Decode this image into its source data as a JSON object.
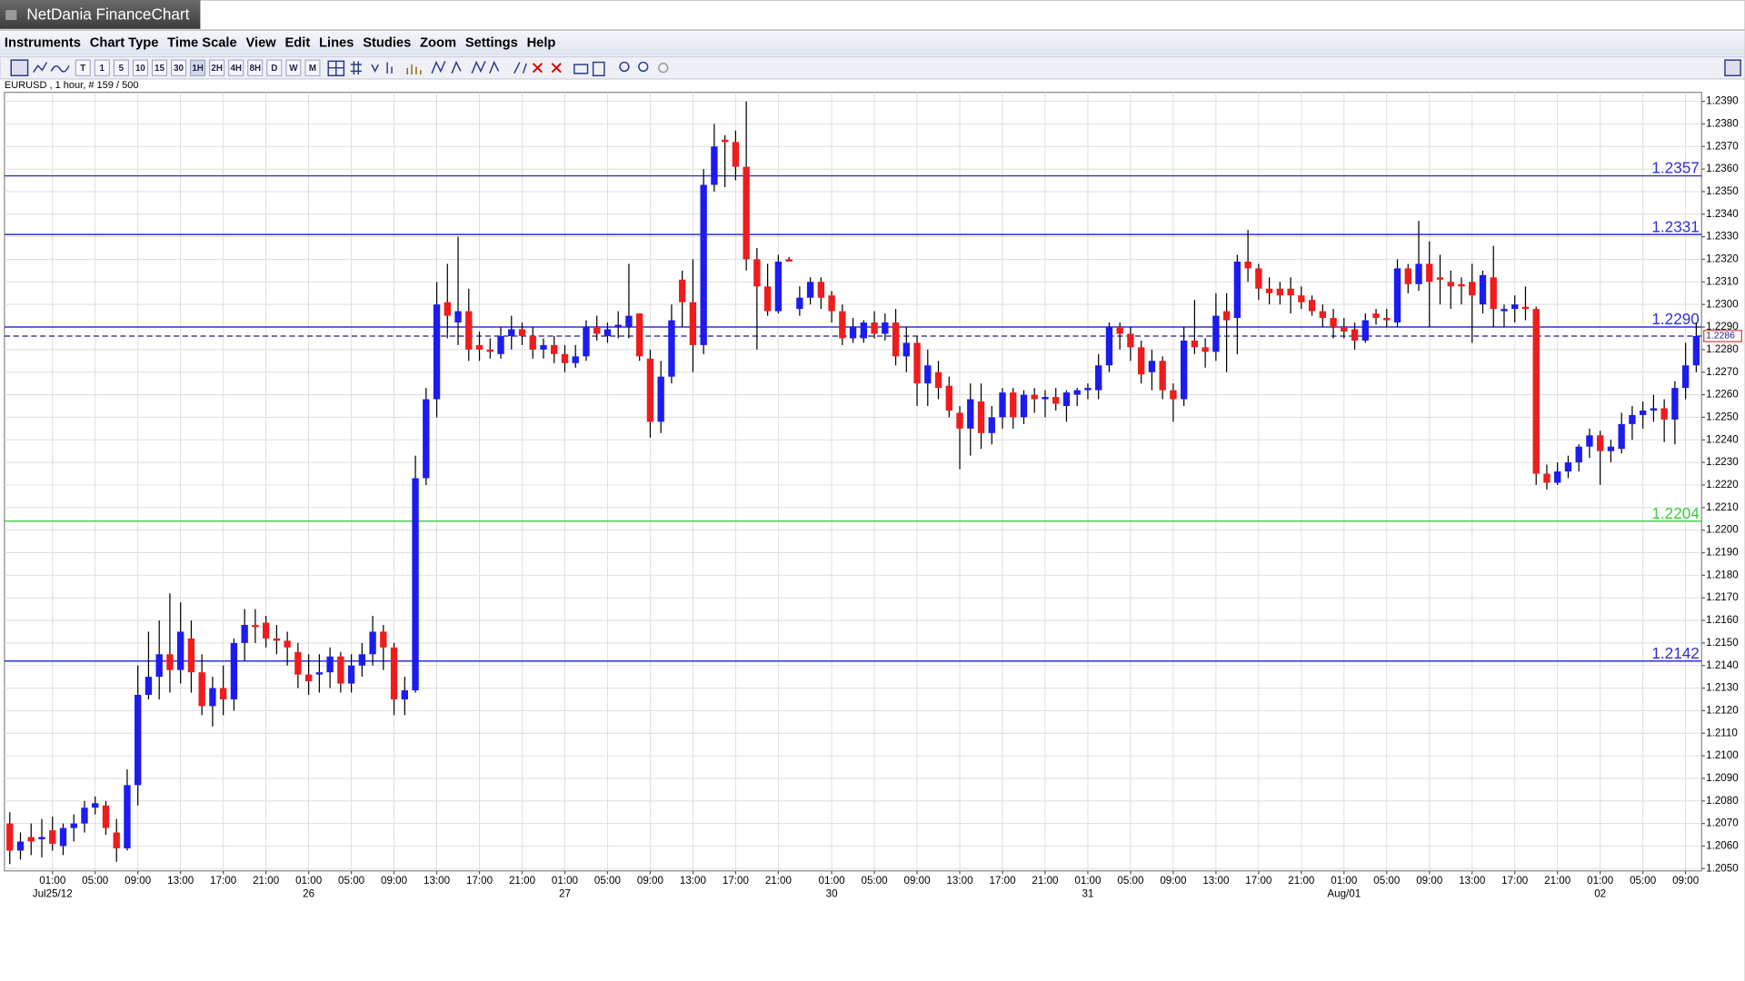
{
  "window": {
    "title": "NetDania FinanceChart"
  },
  "menu": [
    "Instruments",
    "Chart Type",
    "Time Scale",
    "View",
    "Edit",
    "Lines",
    "Studies",
    "Zoom",
    "Settings",
    "Help"
  ],
  "toolbar": [
    "T",
    "1",
    "5",
    "10",
    "15",
    "30",
    "1H",
    "2H",
    "4H",
    "8H",
    "D",
    "W",
    "M"
  ],
  "chart_data": {
    "type": "candlestick",
    "info": "EURUSD , 1 hour, # 159 / 500",
    "up_color": "#1c1cf0",
    "down_color": "#f01c1c",
    "grid": true,
    "ylim": [
      1.2049,
      1.2394
    ],
    "yticks": [
      {
        "value": 1.205,
        "label": "1.2050"
      },
      {
        "value": 1.206,
        "label": "1.2060"
      },
      {
        "value": 1.207,
        "label": "1.2070"
      },
      {
        "value": 1.208,
        "label": "1.2080"
      },
      {
        "value": 1.209,
        "label": "1.2090"
      },
      {
        "value": 1.21,
        "label": "1.2100"
      },
      {
        "value": 1.211,
        "label": "1.2110"
      },
      {
        "value": 1.212,
        "label": "1.2120"
      },
      {
        "value": 1.213,
        "label": "1.2130"
      },
      {
        "value": 1.214,
        "label": "1.2140"
      },
      {
        "value": 1.215,
        "label": "1.2150"
      },
      {
        "value": 1.216,
        "label": "1.2160"
      },
      {
        "value": 1.217,
        "label": "1.2170"
      },
      {
        "value": 1.218,
        "label": "1.2180"
      },
      {
        "value": 1.219,
        "label": "1.2190"
      },
      {
        "value": 1.22,
        "label": "1.2200"
      },
      {
        "value": 1.221,
        "label": "1.2210"
      },
      {
        "value": 1.222,
        "label": "1.2220"
      },
      {
        "value": 1.223,
        "label": "1.2230"
      },
      {
        "value": 1.224,
        "label": "1.2240"
      },
      {
        "value": 1.225,
        "label": "1.2250"
      },
      {
        "value": 1.226,
        "label": "1.2260"
      },
      {
        "value": 1.227,
        "label": "1.2270"
      },
      {
        "value": 1.228,
        "label": "1.2280"
      },
      {
        "value": 1.229,
        "label": "1.2290"
      },
      {
        "value": 1.23,
        "label": "1.2300"
      },
      {
        "value": 1.231,
        "label": "1.2310"
      },
      {
        "value": 1.232,
        "label": "1.2320"
      },
      {
        "value": 1.233,
        "label": "1.2330"
      },
      {
        "value": 1.234,
        "label": "1.2340"
      },
      {
        "value": 1.235,
        "label": "1.2350"
      },
      {
        "value": 1.236,
        "label": "1.2360"
      },
      {
        "value": 1.237,
        "label": "1.2370"
      },
      {
        "value": 1.238,
        "label": "1.2380"
      },
      {
        "value": 1.239,
        "label": "1.2390"
      }
    ],
    "levels": [
      {
        "value": 1.2357,
        "color": "#2f2fd8"
      },
      {
        "value": 1.2331,
        "color": "#2f2fd8"
      },
      {
        "value": {
          "value": 1.229,
          "label": "1.2290"
        },
        "color": "#2f2fd8"
      },
      {
        "value": 1.2204,
        "color": "#3ccc3c"
      },
      {
        "value": 1.2142,
        "color": "#2f2fd8"
      }
    ],
    "last_price": 1.2286,
    "categories": [
      null,
      null,
      null,
      null,
      "01:00",
      null,
      null,
      null,
      "05:00",
      null,
      null,
      null,
      "09:00",
      null,
      null,
      null,
      "13:00",
      null,
      null,
      null,
      "17:00",
      null,
      null,
      null,
      "21:00",
      null,
      null,
      null,
      "01:00",
      null,
      null,
      null,
      "05:00",
      null,
      null,
      null,
      "09:00",
      null,
      null,
      null,
      "13:00",
      null,
      null,
      null,
      "17:00",
      null,
      null,
      null,
      "21:00",
      null,
      null,
      null,
      "01:00",
      null,
      null,
      null,
      "05:00",
      null,
      null,
      null,
      "09:00",
      null,
      null,
      null,
      "13:00",
      null,
      null,
      null,
      "17:00",
      null,
      null,
      null,
      "21:00",
      null,
      null,
      null,
      null,
      "01:00",
      null,
      null,
      null,
      "05:00",
      null,
      null,
      null,
      "09:00",
      null,
      null,
      null,
      "13:00",
      null,
      null,
      null,
      "17:00",
      null,
      null,
      null,
      "21:00",
      null,
      null,
      null,
      "01:00",
      null,
      null,
      null,
      "05:00",
      null,
      null,
      null,
      "09:00",
      null,
      null,
      null,
      "13:00",
      null,
      null,
      null,
      "17:00",
      null,
      null,
      null,
      "21:00",
      null,
      null,
      null,
      "01:00",
      null,
      null,
      null,
      "05:00",
      null,
      null,
      null,
      "09:00",
      null,
      null,
      null,
      "13:00",
      null,
      null,
      null,
      "17:00",
      null,
      null,
      null,
      "21:00",
      null,
      null,
      null,
      "01:00",
      null,
      null,
      null,
      "05:00",
      null,
      null,
      null,
      "09:00",
      null
    ],
    "dates": [
      null,
      null,
      null,
      null,
      "Jul25/12",
      null,
      null,
      null,
      null,
      null,
      null,
      null,
      null,
      null,
      null,
      null,
      null,
      null,
      null,
      null,
      null,
      null,
      null,
      null,
      null,
      null,
      null,
      null,
      "26",
      null,
      null,
      null,
      null,
      null,
      null,
      null,
      null,
      null,
      null,
      null,
      null,
      null,
      null,
      null,
      null,
      null,
      null,
      null,
      null,
      null,
      null,
      null,
      "27",
      null,
      null,
      null,
      null,
      null,
      null,
      null,
      null,
      null,
      null,
      null,
      null,
      null,
      null,
      null,
      null,
      null,
      null,
      null,
      null,
      null,
      null,
      null,
      null,
      "30",
      null,
      null,
      null,
      null,
      null,
      null,
      null,
      null,
      null,
      null,
      null,
      null,
      null,
      null,
      null,
      null,
      null,
      null,
      null,
      null,
      null,
      null,
      null,
      "31",
      null,
      null,
      null,
      null,
      null,
      null,
      null,
      null,
      null,
      null,
      null,
      null,
      null,
      null,
      null,
      null,
      null,
      null,
      null,
      null,
      null,
      null,
      null,
      "Aug/01",
      null,
      null,
      null,
      null,
      null,
      null,
      null,
      null,
      null,
      null,
      null,
      null,
      null,
      null,
      null,
      null,
      null,
      null,
      null,
      null,
      null,
      null,
      null,
      "02",
      null,
      null,
      null,
      null,
      null,
      null,
      null,
      null,
      null
    ],
    "candles": [
      [
        1.207,
        1.2075,
        1.2052,
        1.2058
      ],
      [
        1.2058,
        1.2066,
        1.2054,
        1.2062
      ],
      [
        1.2064,
        1.207,
        1.2056,
        1.2062
      ],
      [
        1.2063,
        1.2072,
        1.2055,
        1.2064
      ],
      [
        1.2067,
        1.2073,
        1.2058,
        1.2061
      ],
      [
        1.206,
        1.207,
        1.2056,
        1.2068
      ],
      [
        1.2068,
        1.2074,
        1.2062,
        1.207
      ],
      [
        1.207,
        1.208,
        1.2066,
        1.2077
      ],
      [
        1.2077,
        1.2082,
        1.2074,
        1.2079
      ],
      [
        1.2078,
        1.208,
        1.2065,
        1.2068
      ],
      [
        1.2066,
        1.2072,
        1.2053,
        1.2059
      ],
      [
        1.2059,
        1.2094,
        1.2058,
        1.2087
      ],
      [
        1.2087,
        1.214,
        1.2078,
        1.2127
      ],
      [
        1.2127,
        1.2155,
        1.2125,
        1.2135
      ],
      [
        1.2135,
        1.216,
        1.2125,
        1.2145
      ],
      [
        1.2145,
        1.2172,
        1.2128,
        1.2138
      ],
      [
        1.2138,
        1.2168,
        1.2132,
        1.2155
      ],
      [
        1.2152,
        1.216,
        1.2128,
        1.2137
      ],
      [
        1.2137,
        1.2145,
        1.2118,
        1.2122
      ],
      [
        1.2122,
        1.2135,
        1.2113,
        1.213
      ],
      [
        1.213,
        1.214,
        1.2118,
        1.2125
      ],
      [
        1.2125,
        1.2152,
        1.212,
        1.215
      ],
      [
        1.215,
        1.2165,
        1.2142,
        1.2158
      ],
      [
        1.2158,
        1.2165,
        1.215,
        1.2157
      ],
      [
        1.2159,
        1.2162,
        1.2148,
        1.2152
      ],
      [
        1.2152,
        1.2158,
        1.2145,
        1.2151
      ],
      [
        1.2151,
        1.2155,
        1.214,
        1.2148
      ],
      [
        1.2146,
        1.215,
        1.213,
        1.2136
      ],
      [
        1.2136,
        1.2145,
        1.2127,
        1.2133
      ],
      [
        1.2136,
        1.2145,
        1.2128,
        1.2137
      ],
      [
        1.2137,
        1.2148,
        1.213,
        1.2144
      ],
      [
        1.2144,
        1.2146,
        1.2128,
        1.2132
      ],
      [
        1.2132,
        1.2145,
        1.2128,
        1.214
      ],
      [
        1.214,
        1.215,
        1.2135,
        1.2145
      ],
      [
        1.2145,
        1.2162,
        1.214,
        1.2155
      ],
      [
        1.2155,
        1.2158,
        1.2138,
        1.2148
      ],
      [
        1.2148,
        1.215,
        1.2118,
        1.2125
      ],
      [
        1.2125,
        1.2135,
        1.2118,
        1.2129
      ],
      [
        1.2129,
        1.2233,
        1.2128,
        1.2223
      ],
      [
        1.2223,
        1.2263,
        1.222,
        1.2258
      ],
      [
        1.2258,
        1.231,
        1.225,
        1.23
      ],
      [
        1.2301,
        1.2318,
        1.2285,
        1.2295
      ],
      [
        1.2292,
        1.233,
        1.2282,
        1.2297
      ],
      [
        1.2297,
        1.2307,
        1.2275,
        1.228
      ],
      [
        1.2282,
        1.2288,
        1.2275,
        1.228
      ],
      [
        1.228,
        1.2285,
        1.2276,
        1.2279
      ],
      [
        1.2278,
        1.229,
        1.2276,
        1.2286
      ],
      [
        1.2286,
        1.2295,
        1.228,
        1.2289
      ],
      [
        1.2289,
        1.2292,
        1.2282,
        1.2286
      ],
      [
        1.2286,
        1.229,
        1.2276,
        1.228
      ],
      [
        1.228,
        1.2285,
        1.2276,
        1.2282
      ],
      [
        1.2282,
        1.2286,
        1.2274,
        1.2278
      ],
      [
        1.2278,
        1.2282,
        1.227,
        1.2274
      ],
      [
        1.2274,
        1.2282,
        1.2272,
        1.2277
      ],
      [
        1.2277,
        1.2293,
        1.2275,
        1.229
      ],
      [
        1.229,
        1.2295,
        1.2284,
        1.2287
      ],
      [
        1.2286,
        1.2292,
        1.2283,
        1.2289
      ],
      [
        1.229,
        1.2297,
        1.2285,
        1.2291
      ],
      [
        1.229,
        1.2318,
        1.2285,
        1.2295
      ],
      [
        1.2296,
        1.2296,
        1.2275,
        1.2277
      ],
      [
        1.2276,
        1.228,
        1.2241,
        1.2248
      ],
      [
        1.2248,
        1.2275,
        1.2243,
        1.2268
      ],
      [
        1.2268,
        1.23,
        1.2265,
        1.2293
      ],
      [
        1.2311,
        1.2315,
        1.229,
        1.2301
      ],
      [
        1.2301,
        1.232,
        1.227,
        1.2282
      ],
      [
        1.2282,
        1.236,
        1.2278,
        1.2353
      ],
      [
        1.2353,
        1.238,
        1.235,
        1.237
      ],
      [
        1.2373,
        1.2375,
        1.2352,
        1.2372
      ],
      [
        1.2372,
        1.2377,
        1.2355,
        1.2361
      ],
      [
        1.2361,
        1.239,
        1.2315,
        1.232
      ],
      [
        1.232,
        1.2325,
        1.228,
        1.2308
      ],
      [
        1.2308,
        1.2318,
        1.2295,
        1.2297
      ],
      [
        1.2297,
        1.2322,
        1.2296,
        1.2319
      ],
      [
        1.232,
        1.2321,
        1.2319,
        1.2319
      ],
      [
        1.2298,
        1.2308,
        1.2295,
        1.2303
      ],
      [
        1.2303,
        1.2312,
        1.23,
        1.231
      ],
      [
        1.231,
        1.2312,
        1.2298,
        1.2303
      ],
      [
        1.2304,
        1.2306,
        1.2292,
        1.2297
      ],
      [
        1.2297,
        1.23,
        1.2282,
        1.2285
      ],
      [
        1.2285,
        1.2294,
        1.2283,
        1.229
      ],
      [
        1.2285,
        1.2293,
        1.2283,
        1.2292
      ],
      [
        1.2292,
        1.2297,
        1.2285,
        1.2287
      ],
      [
        1.2287,
        1.2296,
        1.2284,
        1.2292
      ],
      [
        1.2292,
        1.2298,
        1.2273,
        1.2277
      ],
      [
        1.2277,
        1.229,
        1.227,
        1.2283
      ],
      [
        1.2283,
        1.2286,
        1.2255,
        1.2265
      ],
      [
        1.2265,
        1.228,
        1.2255,
        1.2273
      ],
      [
        1.227,
        1.2275,
        1.2258,
        1.2263
      ],
      [
        1.2264,
        1.2268,
        1.225,
        1.2253
      ],
      [
        1.2252,
        1.2255,
        1.2227,
        1.2245
      ],
      [
        1.2245,
        1.2265,
        1.2233,
        1.2258
      ],
      [
        1.2257,
        1.2265,
        1.2236,
        1.2243
      ],
      [
        1.2243,
        1.2255,
        1.2238,
        1.225
      ],
      [
        1.225,
        1.2263,
        1.2245,
        1.2261
      ],
      [
        1.2261,
        1.2263,
        1.2245,
        1.225
      ],
      [
        1.225,
        1.2262,
        1.2247,
        1.226
      ],
      [
        1.226,
        1.2263,
        1.2252,
        1.2258
      ],
      [
        1.2258,
        1.2262,
        1.225,
        1.2259
      ],
      [
        1.2259,
        1.2263,
        1.2253,
        1.2256
      ],
      [
        1.2255,
        1.2262,
        1.2248,
        1.2261
      ],
      [
        1.226,
        1.2263,
        1.2255,
        1.2262
      ],
      [
        1.2262,
        1.2265,
        1.2258,
        1.2263
      ],
      [
        1.2262,
        1.2278,
        1.2258,
        1.2273
      ],
      [
        1.2273,
        1.2292,
        1.227,
        1.229
      ],
      [
        1.229,
        1.2292,
        1.228,
        1.2287
      ],
      [
        1.2287,
        1.229,
        1.2275,
        1.2281
      ],
      [
        1.2281,
        1.2284,
        1.2265,
        1.2269
      ],
      [
        1.227,
        1.228,
        1.2262,
        1.2275
      ],
      [
        1.2275,
        1.2277,
        1.2258,
        1.2262
      ],
      [
        1.2262,
        1.2265,
        1.2248,
        1.2258
      ],
      [
        1.2258,
        1.229,
        1.2255,
        1.2284
      ],
      [
        1.2284,
        1.2302,
        1.2278,
        1.2281
      ],
      [
        1.2281,
        1.2285,
        1.2272,
        1.2279
      ],
      [
        1.2279,
        1.2305,
        1.2275,
        1.2295
      ],
      [
        1.2297,
        1.2305,
        1.227,
        1.2293
      ],
      [
        1.2294,
        1.2322,
        1.2278,
        1.2319
      ],
      [
        1.2319,
        1.2333,
        1.231,
        1.2316
      ],
      [
        1.2316,
        1.2318,
        1.2302,
        1.2307
      ],
      [
        1.2307,
        1.2312,
        1.23,
        1.2305
      ],
      [
        1.2307,
        1.231,
        1.23,
        1.2304
      ],
      [
        1.2307,
        1.2312,
        1.2296,
        1.2304
      ],
      [
        1.2304,
        1.2308,
        1.2298,
        1.2301
      ],
      [
        1.2302,
        1.2304,
        1.2295,
        1.2297
      ],
      [
        1.2297,
        1.23,
        1.229,
        1.2294
      ],
      [
        1.2294,
        1.2298,
        1.2285,
        1.229
      ],
      [
        1.229,
        1.2294,
        1.2285,
        1.2288
      ],
      [
        1.2289,
        1.2292,
        1.228,
        1.2284
      ],
      [
        1.2284,
        1.2296,
        1.2283,
        1.2293
      ],
      [
        1.2296,
        1.2298,
        1.2291,
        1.2294
      ],
      [
        1.2294,
        1.2298,
        1.229,
        1.2293
      ],
      [
        1.2292,
        1.232,
        1.229,
        1.2316
      ],
      [
        1.2316,
        1.2318,
        1.2305,
        1.2309
      ],
      [
        1.2309,
        1.2337,
        1.2306,
        1.2318
      ],
      [
        1.2318,
        1.2328,
        1.229,
        1.231
      ],
      [
        1.2312,
        1.2322,
        1.23,
        1.2311
      ],
      [
        1.231,
        1.2315,
        1.2298,
        1.2308
      ],
      [
        1.2309,
        1.2312,
        1.23,
        1.2308
      ],
      [
        1.231,
        1.2318,
        1.2283,
        1.2304
      ],
      [
        1.23,
        1.2315,
        1.2296,
        1.2313
      ],
      [
        1.2312,
        1.2326,
        1.229,
        1.2298
      ],
      [
        1.2297,
        1.23,
        1.229,
        1.2298
      ],
      [
        1.2298,
        1.2304,
        1.2292,
        1.23
      ],
      [
        1.2299,
        1.2308,
        1.2293,
        1.2298
      ],
      [
        1.2298,
        1.2299,
        1.222,
        1.2225
      ],
      [
        1.2225,
        1.2229,
        1.2218,
        1.2221
      ],
      [
        1.2221,
        1.223,
        1.222,
        1.2226
      ],
      [
        1.2226,
        1.2233,
        1.2223,
        1.223
      ],
      [
        1.223,
        1.2238,
        1.2226,
        1.2237
      ],
      [
        1.2237,
        1.2245,
        1.2232,
        1.2242
      ],
      [
        1.2242,
        1.2244,
        1.222,
        1.2235
      ],
      [
        1.2235,
        1.224,
        1.223,
        1.2237
      ],
      [
        1.2236,
        1.2252,
        1.2234,
        1.2247
      ],
      [
        1.2247,
        1.2255,
        1.224,
        1.2251
      ],
      [
        1.2251,
        1.2257,
        1.2245,
        1.2253
      ],
      [
        1.2253,
        1.226,
        1.2248,
        1.2254
      ],
      [
        1.2254,
        1.2258,
        1.2239,
        1.2249
      ],
      [
        1.2249,
        1.2266,
        1.2238,
        1.2263
      ],
      [
        1.2263,
        1.2283,
        1.2258,
        1.2273
      ],
      [
        1.2273,
        1.2292,
        1.227,
        1.2286
      ]
    ]
  }
}
